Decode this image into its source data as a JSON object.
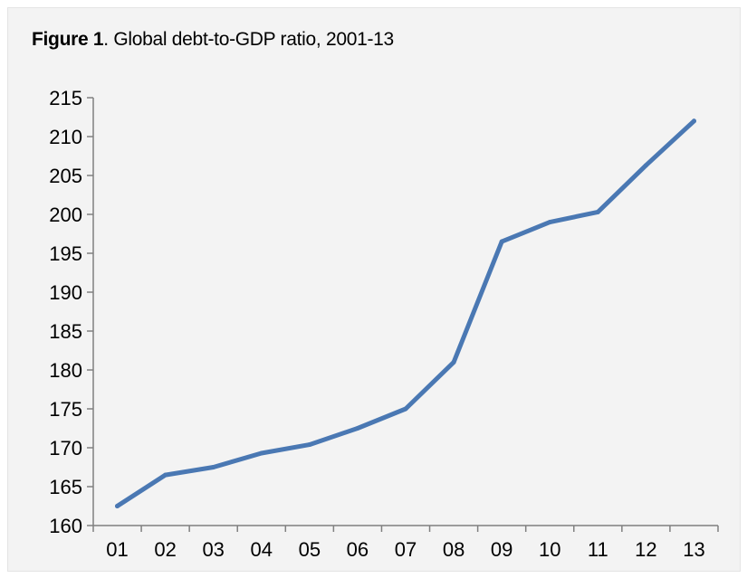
{
  "figure": {
    "label": "Figure 1",
    "caption": ". Global debt-to-GDP ratio, 2001-13"
  },
  "colors": {
    "background": "#f3f3f3",
    "line": "#4a78b3",
    "axis": "#808080"
  },
  "chart_data": {
    "type": "line",
    "title": "Figure 1. Global debt-to-GDP ratio, 2001-13",
    "xlabel": "",
    "ylabel": "",
    "categories": [
      "01",
      "02",
      "03",
      "04",
      "05",
      "06",
      "07",
      "08",
      "09",
      "10",
      "11",
      "12",
      "13"
    ],
    "series": [
      {
        "values": [
          162.5,
          166.5,
          167.5,
          169.3,
          170.4,
          172.5,
          175,
          181,
          196.5,
          199,
          200.3,
          206.3,
          212
        ]
      }
    ],
    "yticks": [
      "160",
      "165",
      "170",
      "175",
      "180",
      "185",
      "190",
      "195",
      "200",
      "205",
      "210",
      "215"
    ],
    "ylim": [
      160,
      215
    ],
    "grid": false,
    "legend": "none"
  }
}
